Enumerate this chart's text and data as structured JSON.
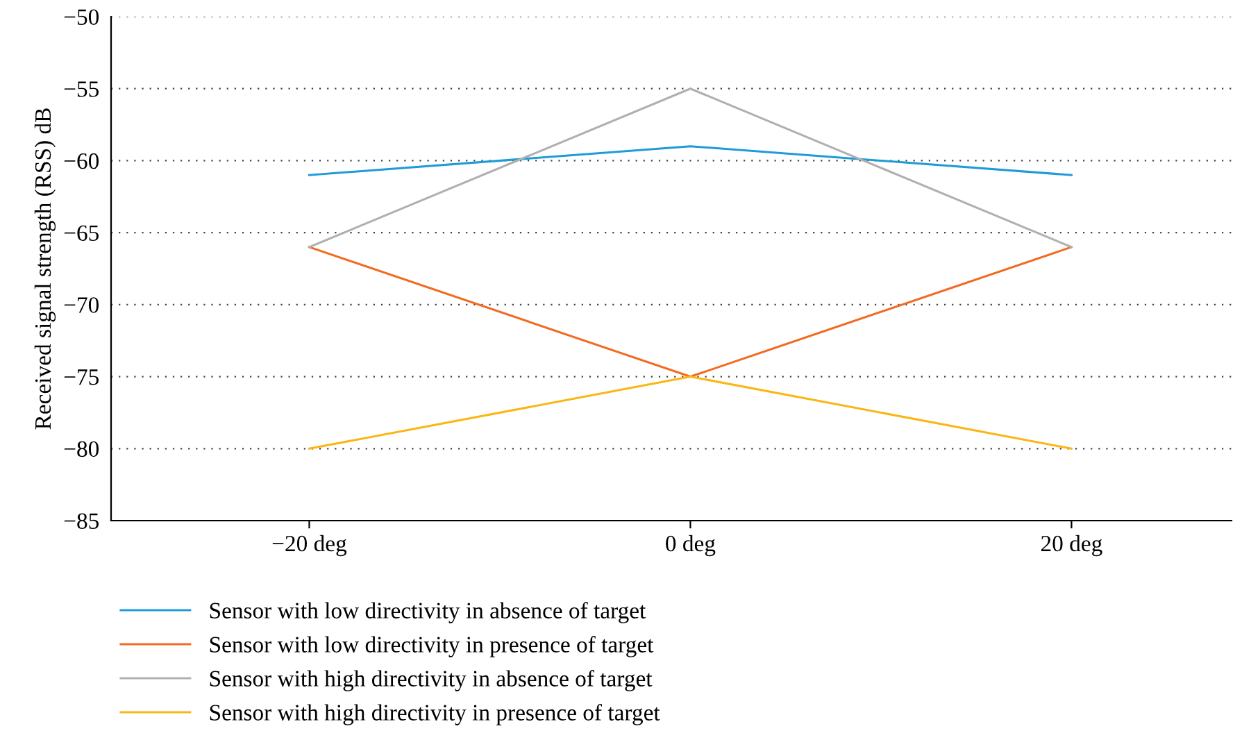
{
  "chart_data": {
    "type": "line",
    "ylabel": "Received signal strength (RSS) dB",
    "categories": [
      "−20 deg",
      "0 deg",
      "20 deg"
    ],
    "series": [
      {
        "name": "Sensor with low directivity in absence of target",
        "color": "#1f9bd7",
        "values": [
          -61,
          -59,
          -61
        ]
      },
      {
        "name": "Sensor with low directivity in presence of target",
        "color": "#f26b21",
        "values": [
          -66,
          -75,
          -66
        ]
      },
      {
        "name": "Sensor with high directivity in absence of target",
        "color": "#b0b0b0",
        "values": [
          -66,
          -55,
          -66
        ]
      },
      {
        "name": "Sensor with high directivity in presence of target",
        "color": "#fbb615",
        "values": [
          -80,
          -75,
          -80
        ]
      }
    ],
    "ylim": [
      -85,
      -50
    ],
    "yticks": [
      -85,
      -80,
      -75,
      -70,
      -65,
      -60,
      -55,
      -50
    ],
    "grid": "y",
    "legend": "bottom",
    "marker": "none",
    "line_style": "solid"
  }
}
